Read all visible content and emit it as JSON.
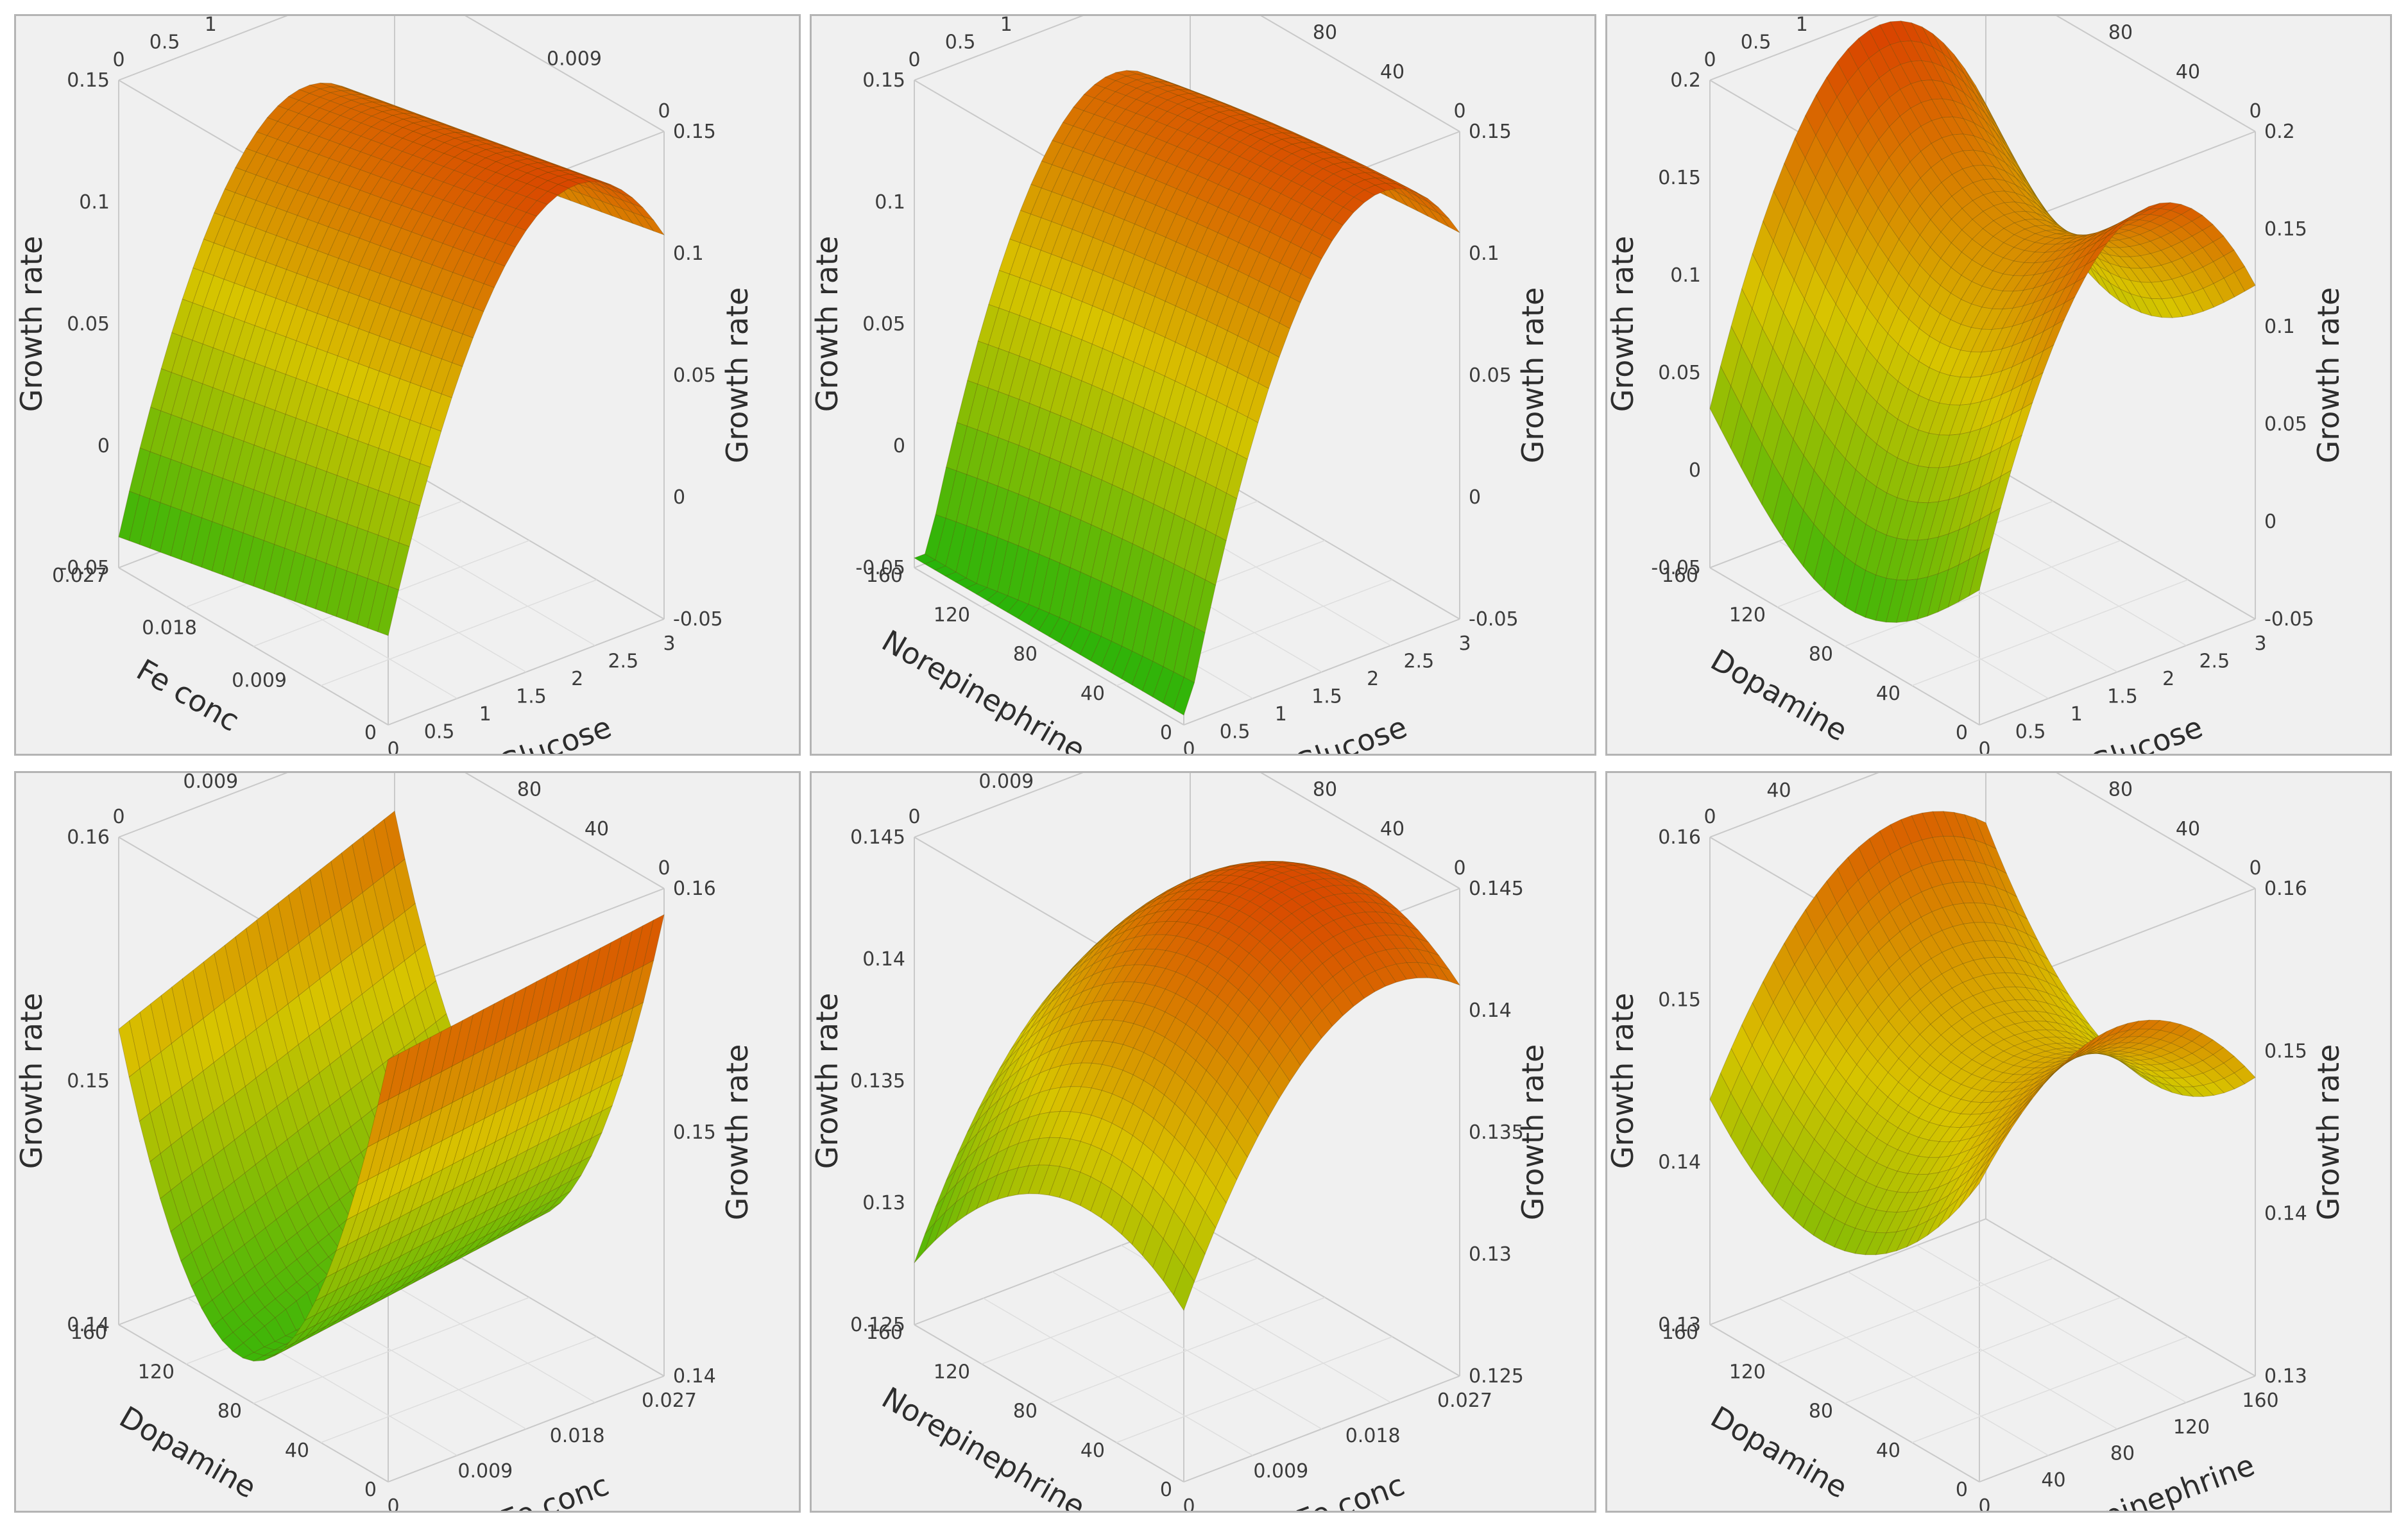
{
  "colors": {
    "low": "#22b30a",
    "mid": "#d8c400",
    "high": "#d93a00",
    "panel_bg": "#f0f0f0",
    "frame": "#c9c9c9",
    "grid": "#dedede"
  },
  "chart_data": [
    {
      "type": "surface",
      "title": "",
      "zlabel": "Growth rate",
      "axis_a": {
        "label": "Fe conc",
        "range": [
          0,
          0.027
        ],
        "ticks": [
          "0",
          "0.009",
          "0.018",
          "0.027"
        ]
      },
      "axis_b": {
        "label": "Glucose",
        "range": [
          0,
          3
        ],
        "ticks": [
          "0",
          "0.5",
          "1",
          "1.5",
          "2",
          "2.5",
          "3"
        ]
      },
      "zrange": [
        -0.05,
        0.15
      ],
      "zticks": [
        "-0.05",
        "0",
        "0.05",
        "0.1",
        "0.15"
      ],
      "shape": "ridge_b",
      "corners": {
        "low": -0.05,
        "ridge": 0.157,
        "end": 0.13
      }
    },
    {
      "type": "surface",
      "title": "",
      "zlabel": "Growth rate",
      "axis_a": {
        "label": "Norepinephrine",
        "range": [
          0,
          160
        ],
        "ticks": [
          "0",
          "40",
          "80",
          "120",
          "160"
        ]
      },
      "axis_b": {
        "label": "Glucose",
        "range": [
          0,
          3
        ],
        "ticks": [
          "0",
          "0.5",
          "1",
          "1.5",
          "2",
          "2.5",
          "3"
        ]
      },
      "zrange": [
        -0.05,
        0.15
      ],
      "zticks": [
        "-0.05",
        "0",
        "0.05",
        "0.1",
        "0.15"
      ],
      "shape": "ridge_b_curved",
      "corners": {
        "low": -0.05,
        "ridge": 0.16,
        "end": 0.12
      }
    },
    {
      "type": "surface",
      "title": "",
      "zlabel": "Growth rate",
      "axis_a": {
        "label": "Dopamine",
        "range": [
          0,
          160
        ],
        "ticks": [
          "0",
          "40",
          "80",
          "120",
          "160"
        ]
      },
      "axis_b": {
        "label": "Glucose",
        "range": [
          0,
          3
        ],
        "ticks": [
          "0",
          "0.5",
          "1",
          "1.5",
          "2",
          "2.5",
          "3"
        ]
      },
      "zrange": [
        -0.05,
        0.2
      ],
      "zticks": [
        "-0.05",
        "0",
        "0.05",
        "0.1",
        "0.15",
        "0.2"
      ],
      "shape": "ridge_b_saddle",
      "corners": {
        "low": -0.05,
        "ridge": 0.2,
        "end": 0.15
      }
    },
    {
      "type": "surface",
      "title": "",
      "zlabel": "Growth rate",
      "axis_a": {
        "label": "Dopamine",
        "range": [
          0,
          160
        ],
        "ticks": [
          "0",
          "40",
          "80",
          "120",
          "160"
        ]
      },
      "axis_b": {
        "label": "Fe conc",
        "range": [
          0,
          0.027
        ],
        "ticks": [
          "0",
          "0.009",
          "0.018",
          "0.027"
        ]
      },
      "zrange": [
        0.135,
        0.165
      ],
      "zticks": [
        "0.14",
        "0.15",
        "0.16"
      ],
      "shape": "valley_a",
      "corners": {
        "low": 0.136,
        "ridge": 0.165,
        "end": 0.152
      }
    },
    {
      "type": "surface",
      "title": "",
      "zlabel": "Growth rate",
      "axis_a": {
        "label": "Norepinephrine",
        "range": [
          0,
          160
        ],
        "ticks": [
          "0",
          "40",
          "80",
          "120",
          "160"
        ]
      },
      "axis_b": {
        "label": "Fe conc",
        "range": [
          0,
          0.027
        ],
        "ticks": [
          "0",
          "0.009",
          "0.018",
          "0.027"
        ]
      },
      "zrange": [
        0.125,
        0.145
      ],
      "zticks": [
        "0.125",
        "0.13",
        "0.135",
        "0.14",
        "0.145"
      ],
      "shape": "dome",
      "corners": {
        "low": 0.125,
        "ridge": 0.146,
        "end": 0.13
      }
    },
    {
      "type": "surface",
      "title": "",
      "zlabel": "Growth rate",
      "axis_a": {
        "label": "Dopamine",
        "range": [
          0,
          160
        ],
        "ticks": [
          "0",
          "40",
          "80",
          "120",
          "160"
        ]
      },
      "axis_b": {
        "label": "Norepinephrine",
        "range": [
          0,
          160
        ],
        "ticks": [
          "0",
          "40",
          "80",
          "120",
          "160"
        ]
      },
      "zrange": [
        0.125,
        0.165
      ],
      "zticks": [
        "0.13",
        "0.14",
        "0.15",
        "0.16"
      ],
      "shape": "saddle",
      "corners": {
        "low": 0.125,
        "ridge": 0.165,
        "end": 0.16
      }
    }
  ]
}
